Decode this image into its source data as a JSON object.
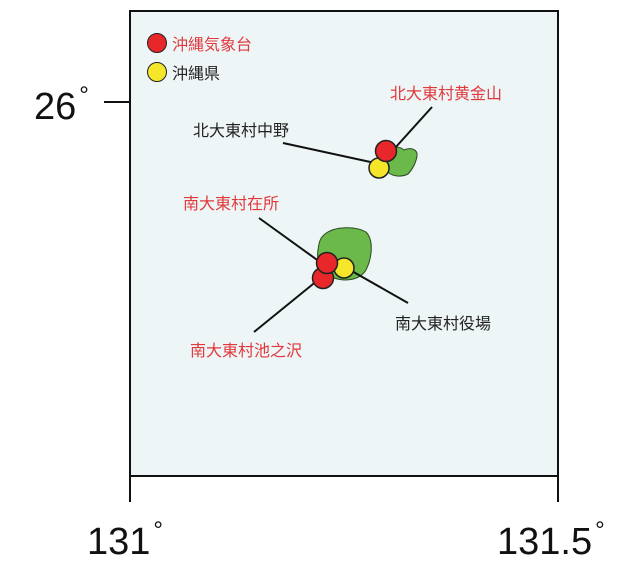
{
  "colors": {
    "jma": "#e8272a",
    "prefecture": "#f5e629",
    "island": "#6ab94a",
    "label_red": "#e0393c",
    "label_black": "#222222",
    "map_bg": "#eef5f7"
  },
  "legend": {
    "jma_label": "沖縄気象台",
    "prefecture_label": "沖縄県"
  },
  "axes": {
    "lat_label": "26",
    "lon_left_label": "131",
    "lon_right_label": "131.5",
    "degree_symbol": "°"
  },
  "stations": {
    "kita_kogane": "北大東村黄金山",
    "kita_nakano": "北大東村中野",
    "minami_zaisho": "南大東村在所",
    "minami_yakuba": "南大東村役場",
    "minami_ikenosawa": "南大東村池之沢"
  }
}
